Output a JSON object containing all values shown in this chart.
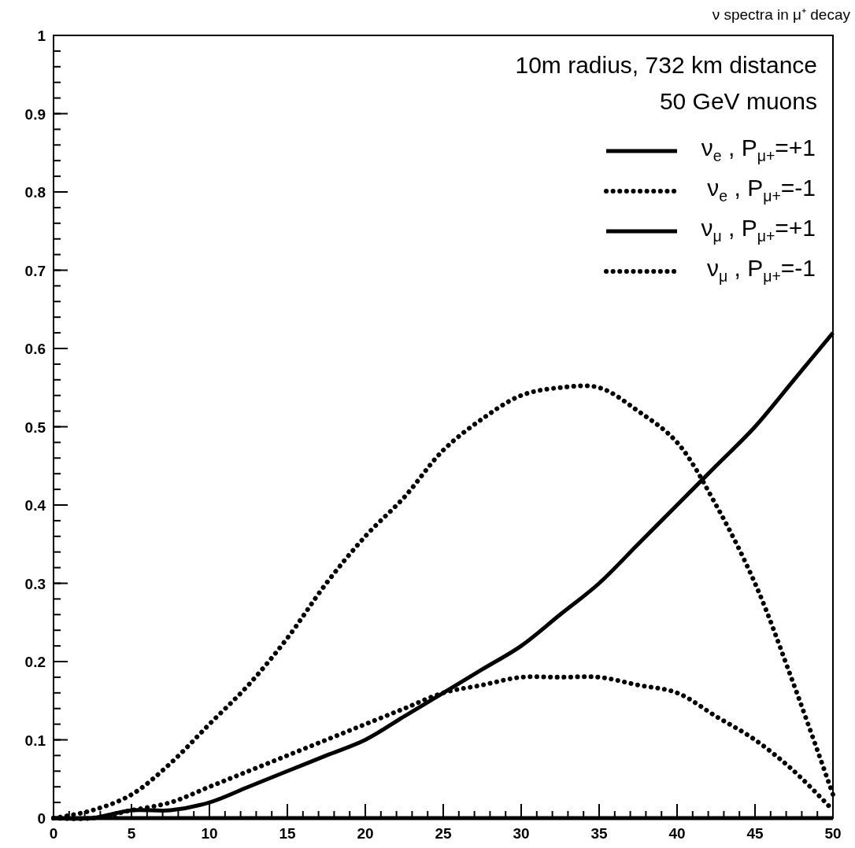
{
  "chart_data": {
    "type": "line",
    "title": "ν spectra in μ⁺ decay",
    "annotations": [
      "10m radius, 732 km distance",
      "50 GeV muons"
    ],
    "x": [
      0,
      2.5,
      5,
      7.5,
      10,
      12.5,
      15,
      17.5,
      20,
      22.5,
      25,
      27.5,
      30,
      32.5,
      35,
      37.5,
      40,
      42.5,
      45,
      47.5,
      50
    ],
    "series": [
      {
        "name": "ν$_{e}$ , P$_{μ+}$=+1",
        "color": "#000000",
        "line_style": "solid",
        "values": [
          0,
          0,
          0,
          0,
          0,
          0,
          0,
          0,
          0,
          0,
          0,
          0,
          0,
          0,
          0,
          0,
          0,
          0,
          0,
          0,
          0
        ]
      },
      {
        "name": "ν$_{e}$ , P$_{μ+}$=-1",
        "color": "#000000",
        "line_style": "dotted",
        "values": [
          0,
          0.01,
          0.03,
          0.07,
          0.12,
          0.17,
          0.23,
          0.3,
          0.36,
          0.41,
          0.47,
          0.51,
          0.54,
          0.55,
          0.55,
          0.52,
          0.48,
          0.4,
          0.3,
          0.17,
          0.03
        ]
      },
      {
        "name": "ν$_{μ}$ , P$_{μ+}$=+1",
        "color": "#000000",
        "line_style": "solid",
        "values": [
          0,
          0,
          0.01,
          0.01,
          0.02,
          0.04,
          0.06,
          0.08,
          0.1,
          0.13,
          0.16,
          0.19,
          0.22,
          0.26,
          0.3,
          0.35,
          0.4,
          0.45,
          0.5,
          0.56,
          0.62
        ]
      },
      {
        "name": "ν$_{μ}$ , P$_{μ+}$=-1",
        "color": "#000000",
        "line_style": "dotted",
        "values": [
          0,
          0,
          0.01,
          0.02,
          0.04,
          0.06,
          0.08,
          0.1,
          0.12,
          0.14,
          0.16,
          0.17,
          0.18,
          0.18,
          0.18,
          0.17,
          0.16,
          0.13,
          0.1,
          0.06,
          0.01
        ]
      }
    ],
    "xlim": [
      0,
      50
    ],
    "xticks": [
      0,
      5,
      10,
      15,
      20,
      25,
      30,
      35,
      40,
      45,
      50
    ],
    "ylim": [
      0,
      1
    ],
    "yticks": [
      0,
      0.1,
      0.2,
      0.3,
      0.4,
      0.5,
      0.6,
      0.7,
      0.8,
      0.9,
      1
    ],
    "grid": false,
    "legend": "top right",
    "marker": "none"
  }
}
